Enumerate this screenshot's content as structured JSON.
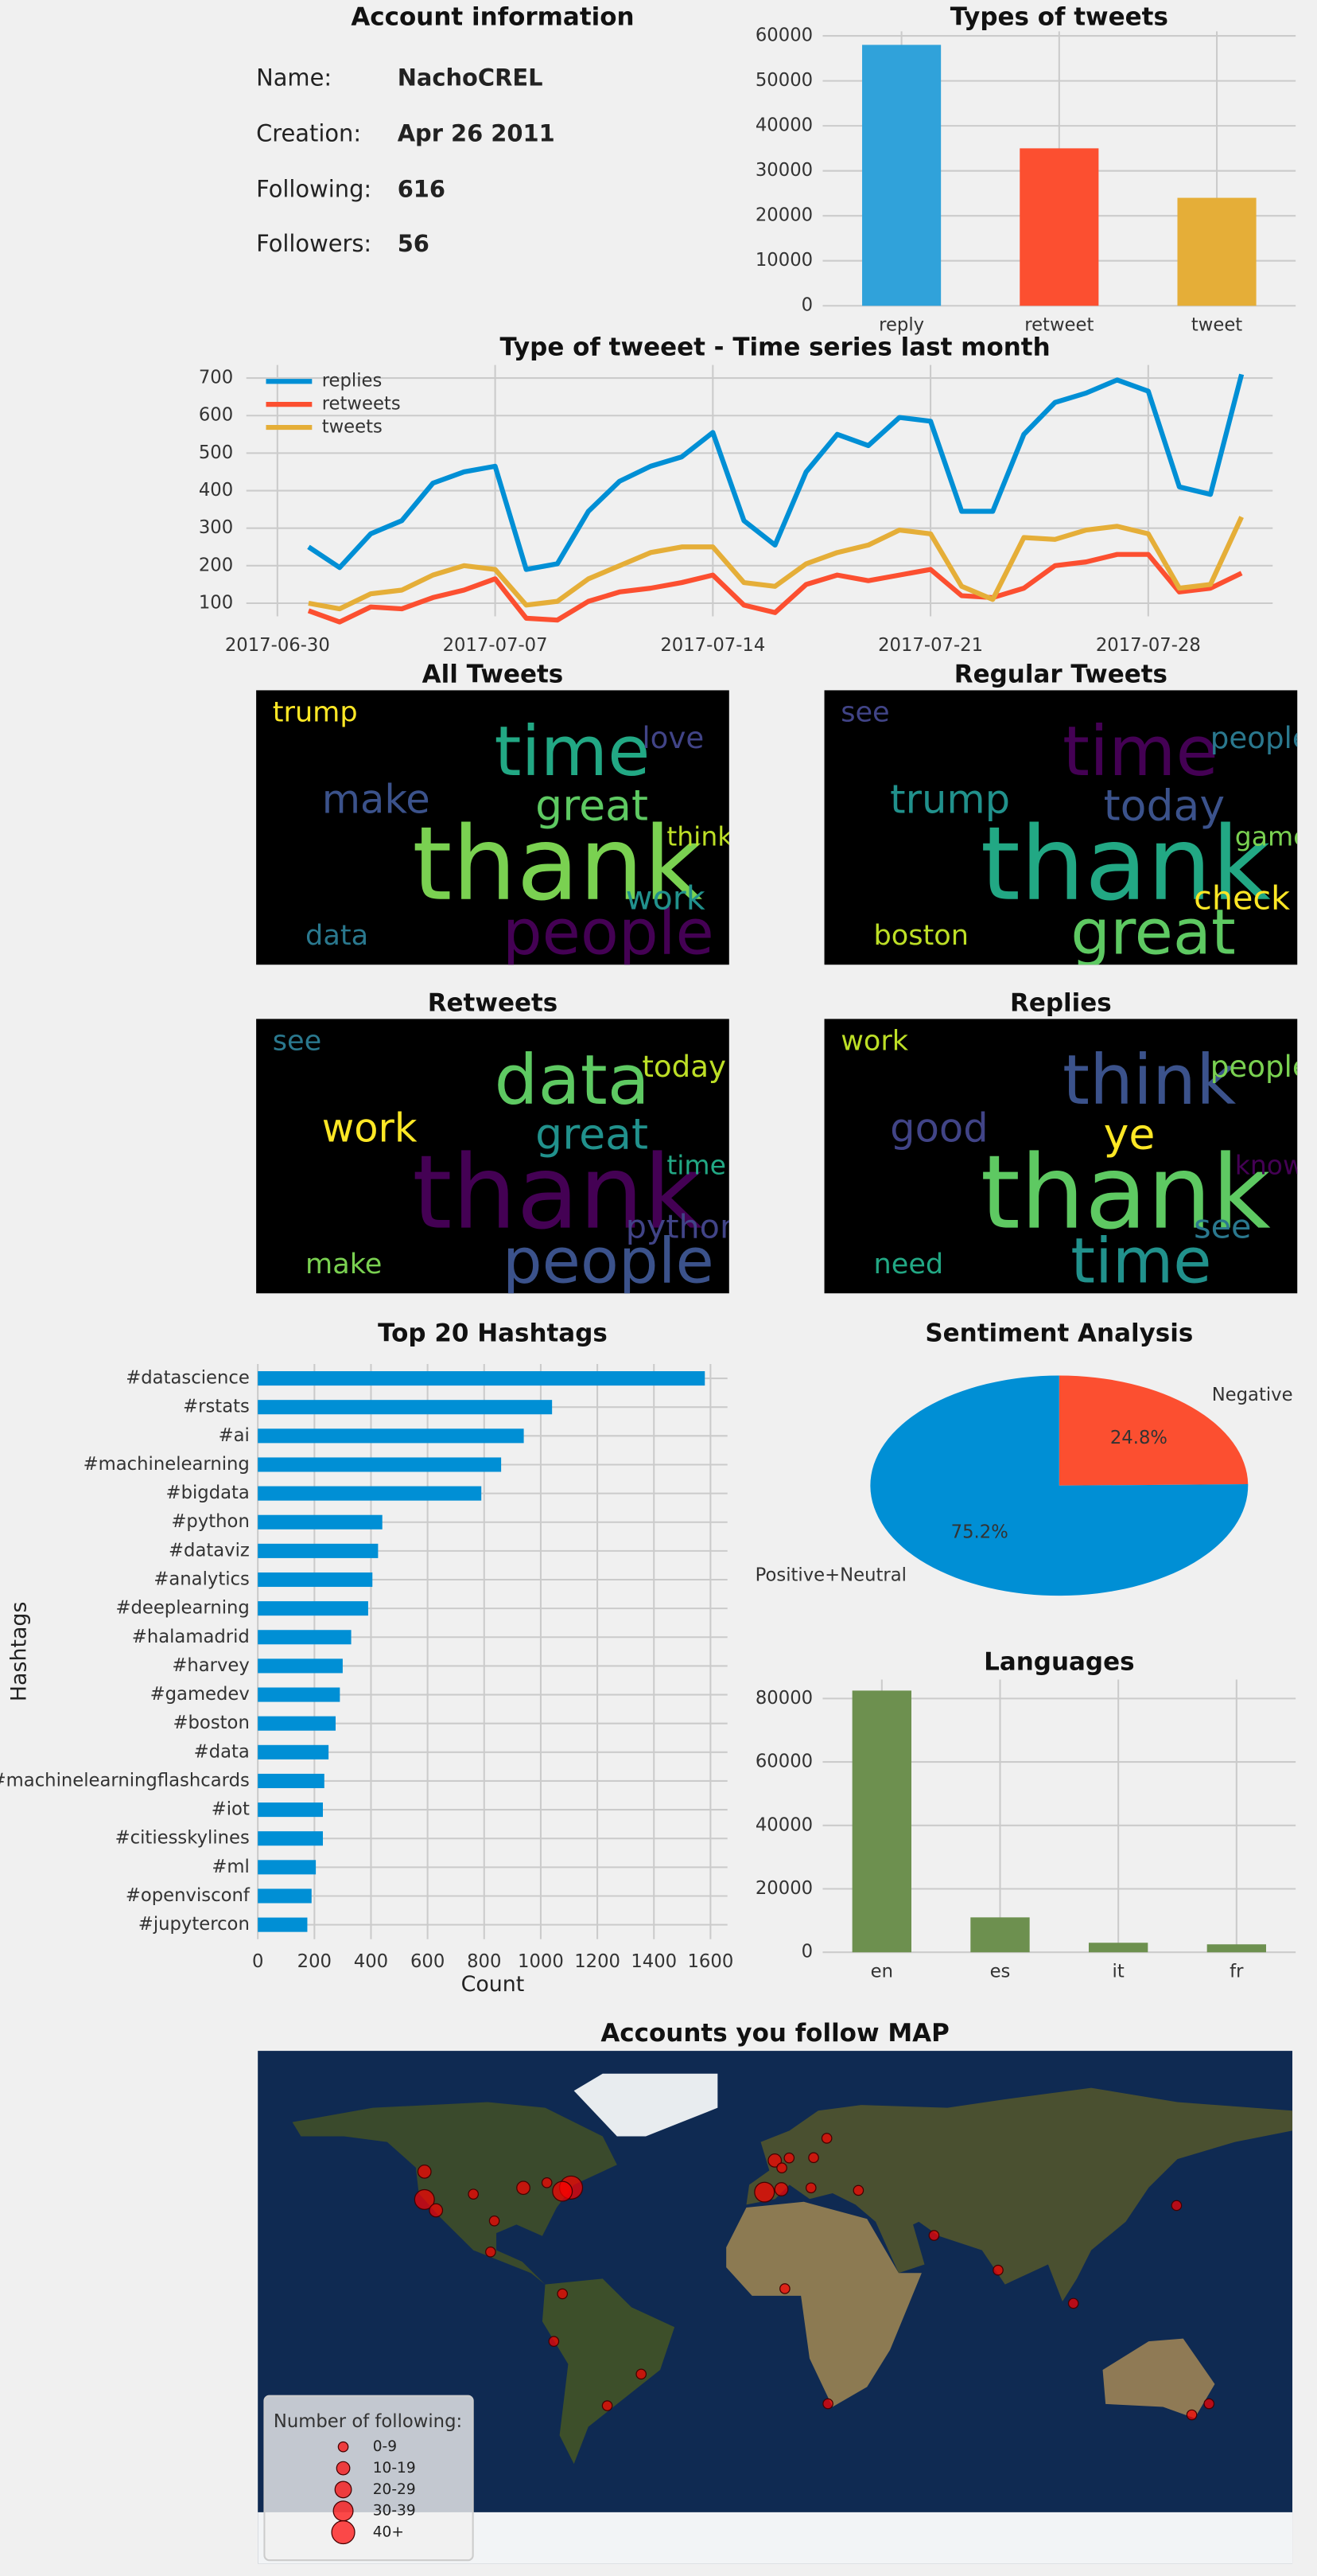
{
  "account": {
    "title": "Account information",
    "rows": [
      {
        "label": "Name:",
        "value": "NachoCREL"
      },
      {
        "label": "Creation:",
        "value": "Apr 26 2011"
      },
      {
        "label": "Following:",
        "value": "616"
      },
      {
        "label": "Followers:",
        "value": "56"
      }
    ]
  },
  "chart_data": [
    {
      "type": "bar",
      "title": "Types of tweets",
      "categories": [
        "reply",
        "retweet",
        "tweet"
      ],
      "values": [
        58000,
        35000,
        24000
      ],
      "colors": [
        "#30a2da",
        "#fc4f30",
        "#e5ae38"
      ],
      "ylim": [
        0,
        61000
      ],
      "yticks": [
        0,
        10000,
        20000,
        30000,
        40000,
        50000,
        60000
      ],
      "grid": true
    },
    {
      "type": "line",
      "title": "Type of tweeet - Time series last month",
      "legend": "upper left",
      "grid": true,
      "x": [
        "2017-07-01",
        "2017-07-02",
        "2017-07-03",
        "2017-07-04",
        "2017-07-05",
        "2017-07-06",
        "2017-07-07",
        "2017-07-08",
        "2017-07-09",
        "2017-07-10",
        "2017-07-11",
        "2017-07-12",
        "2017-07-13",
        "2017-07-14",
        "2017-07-15",
        "2017-07-16",
        "2017-07-17",
        "2017-07-18",
        "2017-07-19",
        "2017-07-20",
        "2017-07-21",
        "2017-07-22",
        "2017-07-23",
        "2017-07-24",
        "2017-07-25",
        "2017-07-26",
        "2017-07-27",
        "2017-07-28",
        "2017-07-29",
        "2017-07-30",
        "2017-07-31"
      ],
      "xlim": [
        "2017-06-29",
        "2017-08-01"
      ],
      "xticks": [
        "2017-06-30",
        "2017-07-07",
        "2017-07-14",
        "2017-07-21",
        "2017-07-28"
      ],
      "ylim": [
        65,
        735
      ],
      "yticks": [
        100,
        200,
        300,
        400,
        500,
        600,
        700
      ],
      "series": [
        {
          "name": "replies",
          "color": "#008fd5",
          "values": [
            250,
            195,
            285,
            320,
            420,
            450,
            465,
            190,
            205,
            345,
            425,
            465,
            490,
            555,
            320,
            255,
            450,
            550,
            520,
            595,
            585,
            345,
            345,
            550,
            635,
            660,
            695,
            665,
            410,
            390,
            710
          ]
        },
        {
          "name": "retweets",
          "color": "#fc4f30",
          "values": [
            80,
            50,
            90,
            85,
            115,
            135,
            165,
            60,
            55,
            105,
            130,
            140,
            155,
            175,
            95,
            75,
            150,
            175,
            160,
            175,
            190,
            120,
            115,
            140,
            200,
            210,
            230,
            230,
            130,
            140,
            180
          ]
        },
        {
          "name": "tweets",
          "color": "#e5ae38",
          "values": [
            100,
            85,
            125,
            135,
            175,
            200,
            190,
            95,
            105,
            165,
            200,
            235,
            250,
            250,
            155,
            145,
            205,
            235,
            255,
            295,
            285,
            145,
            110,
            275,
            270,
            295,
            305,
            285,
            140,
            150,
            330
          ]
        }
      ]
    },
    {
      "type": "hbar",
      "title": "Top 20 Hashtags",
      "xlabel": "Count",
      "ylabel": "Hashtags",
      "color": "#008fd5",
      "grid": true,
      "categories": [
        "#datascience",
        "#rstats",
        "#ai",
        "#machinelearning",
        "#bigdata",
        "#python",
        "#dataviz",
        "#analytics",
        "#deeplearning",
        "#halamadrid",
        "#harvey",
        "#gamedev",
        "#boston",
        "#data",
        "#machinelearningflashcards",
        "#iot",
        "#citiesskylines",
        "#ml",
        "#openvisconf",
        "#jupytercon"
      ],
      "values": [
        1580,
        1040,
        940,
        860,
        790,
        440,
        425,
        405,
        390,
        330,
        300,
        290,
        275,
        250,
        235,
        230,
        230,
        205,
        190,
        175
      ],
      "xlim": [
        0,
        1660
      ],
      "xticks": [
        0,
        200,
        400,
        600,
        800,
        1000,
        1200,
        1400,
        1600
      ]
    },
    {
      "type": "pie",
      "title": "Sentiment Analysis",
      "categories": [
        "Negative",
        "Positive+Neutral"
      ],
      "values": [
        24.8,
        75.2
      ],
      "value_labels": [
        "24.8%",
        "75.2%"
      ],
      "colors": [
        "#fc4f30",
        "#008fd5"
      ]
    },
    {
      "type": "bar",
      "title": "Languages",
      "categories": [
        "en",
        "es",
        "it",
        "fr"
      ],
      "values": [
        82500,
        11000,
        3000,
        2500
      ],
      "colors": [
        "#6d904f",
        "#6d904f",
        "#6d904f",
        "#6d904f"
      ],
      "ylim": [
        0,
        86000
      ],
      "yticks": [
        0,
        20000,
        40000,
        60000,
        80000
      ],
      "grid": true
    }
  ],
  "wordclouds": [
    {
      "title": "All Tweets",
      "words": [
        "thank",
        "time",
        "people",
        "great",
        "make",
        "work",
        "trump",
        "love",
        "data",
        "think"
      ]
    },
    {
      "title": "Regular Tweets",
      "words": [
        "thank",
        "time",
        "great",
        "today",
        "trump",
        "check",
        "see",
        "people",
        "boston",
        "game"
      ]
    },
    {
      "title": "Retweets",
      "words": [
        "thank",
        "data",
        "people",
        "great",
        "work",
        "python",
        "see",
        "today",
        "make",
        "time"
      ]
    },
    {
      "title": "Replies",
      "words": [
        "thank",
        "think",
        "time",
        "ye",
        "good",
        "see",
        "work",
        "people",
        "need",
        "know"
      ]
    }
  ],
  "map": {
    "title": "Accounts you follow MAP",
    "legend_title": "Number of following:",
    "legend": [
      "0-9",
      "10-19",
      "20-29",
      "30-39",
      "40+"
    ],
    "points": [
      {
        "lon": -71,
        "lat": 42,
        "count": 45
      },
      {
        "lon": -74,
        "lat": 40.7,
        "count": 35
      },
      {
        "lon": -122,
        "lat": 37.8,
        "count": 30
      },
      {
        "lon": -122,
        "lat": 47.6,
        "count": 15
      },
      {
        "lon": -118,
        "lat": 34,
        "count": 12
      },
      {
        "lon": -87.6,
        "lat": 41.9,
        "count": 10
      },
      {
        "lon": -97.7,
        "lat": 30.3,
        "count": 8
      },
      {
        "lon": -105,
        "lat": 39.7,
        "count": 6
      },
      {
        "lon": -79.4,
        "lat": 43.7,
        "count": 8
      },
      {
        "lon": -3.7,
        "lat": 40.4,
        "count": 38
      },
      {
        "lon": 2.2,
        "lat": 41.4,
        "count": 12
      },
      {
        "lon": -0.1,
        "lat": 51.5,
        "count": 14
      },
      {
        "lon": 2.35,
        "lat": 48.9,
        "count": 9
      },
      {
        "lon": 13.4,
        "lat": 52.5,
        "count": 7
      },
      {
        "lon": 4.9,
        "lat": 52.4,
        "count": 6
      },
      {
        "lon": 18,
        "lat": 59.3,
        "count": 3
      },
      {
        "lon": 12.5,
        "lat": 41.9,
        "count": 3
      },
      {
        "lon": -99,
        "lat": 19.4,
        "count": 4
      },
      {
        "lon": -74,
        "lat": 4.7,
        "count": 2
      },
      {
        "lon": -46.6,
        "lat": -23.5,
        "count": 3
      },
      {
        "lon": -58.4,
        "lat": -34.6,
        "count": 3
      },
      {
        "lon": -77,
        "lat": -12,
        "count": 2
      },
      {
        "lon": 77.6,
        "lat": 13,
        "count": 3
      },
      {
        "lon": 151,
        "lat": -33.9,
        "count": 3
      },
      {
        "lon": 145,
        "lat": -37.8,
        "count": 2
      },
      {
        "lon": 139.7,
        "lat": 35.7,
        "count": 2
      },
      {
        "lon": 3.4,
        "lat": 6.5,
        "count": 1
      },
      {
        "lon": 18.4,
        "lat": -33.9,
        "count": 1
      },
      {
        "lon": 29,
        "lat": 41,
        "count": 2
      },
      {
        "lon": 55.3,
        "lat": 25.2,
        "count": 1
      },
      {
        "lon": 103.8,
        "lat": 1.35,
        "count": 1
      }
    ]
  }
}
